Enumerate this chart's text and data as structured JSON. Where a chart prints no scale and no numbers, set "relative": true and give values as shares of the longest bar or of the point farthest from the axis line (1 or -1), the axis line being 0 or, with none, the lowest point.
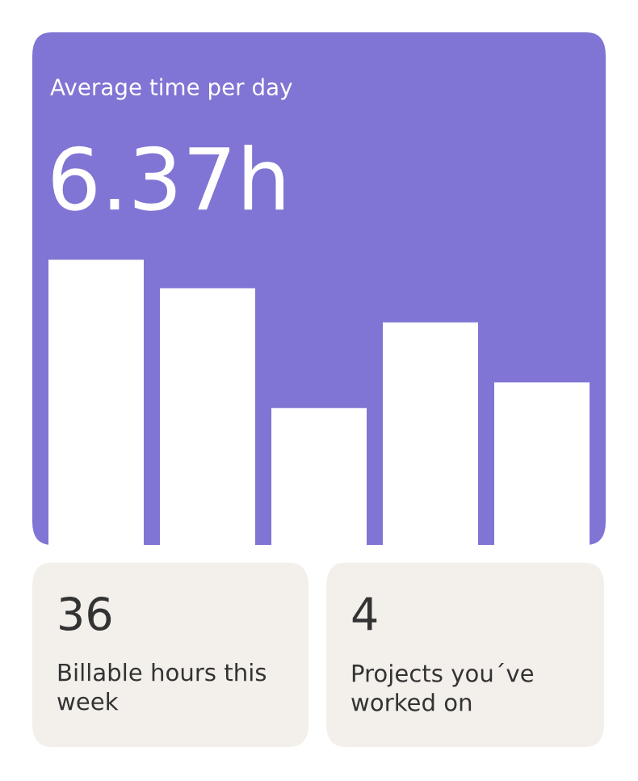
{
  "chart_data": [
    {
      "type": "bar",
      "title": "Average time per day",
      "subtitle": "6.37h",
      "categories": [
        null,
        null,
        null,
        null,
        null
      ],
      "relative": true,
      "values": [
        1,
        0.9,
        0.48,
        0.78,
        0.57
      ],
      "color": "#ffffff"
    },
    {
      "type": "other",
      "title": "36",
      "subtitle": "Billable hours this week"
    },
    {
      "type": "other",
      "title": "4",
      "subtitle": "Projects you´ve worked on"
    }
  ]
}
